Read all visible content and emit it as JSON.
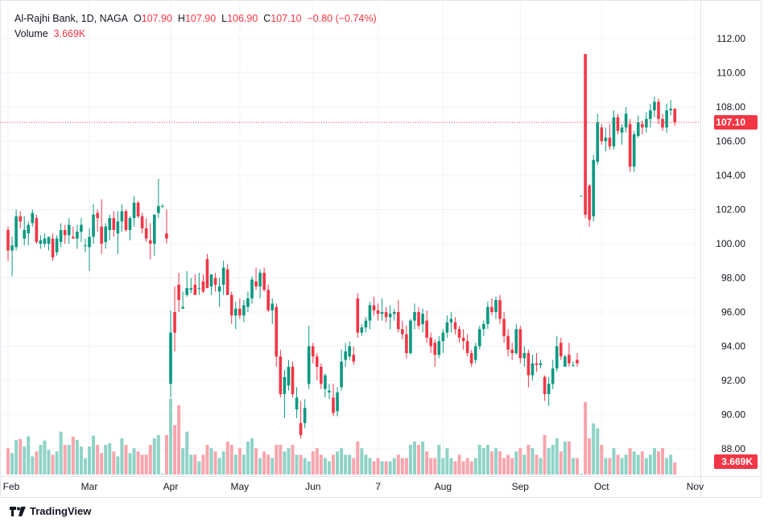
{
  "legend": {
    "symbol": "Al-Rajhi Bank, 1D, NAGA",
    "o_label": "O",
    "o": "107.90",
    "h_label": "H",
    "h": "107.90",
    "l_label": "L",
    "l": "106.90",
    "c_label": "C",
    "c": "107.10",
    "change": "−0.80 (−0.74%)",
    "volume_label": "Volume",
    "volume": "3.669K"
  },
  "brand": "TradingView",
  "colors": {
    "up": "#089981",
    "down": "#f23645",
    "up_volume": "#8fd3c8",
    "down_volume": "#f8a5ad",
    "grid": "#f0f3fa"
  },
  "chart_data": {
    "type": "candlestick",
    "title": "Al-Rajhi Bank, 1D, NAGA",
    "ylim": [
      87,
      113
    ],
    "y_ticks": [
      "88.00",
      "90.00",
      "92.00",
      "94.00",
      "96.00",
      "98.00",
      "100.00",
      "102.00",
      "104.00",
      "106.00",
      "108.00",
      "110.00",
      "112.00"
    ],
    "x_tick_labels": [
      {
        "label": "Feb",
        "index": 0
      },
      {
        "label": "Mar",
        "index": 20
      },
      {
        "label": "Apr",
        "index": 40
      },
      {
        "label": "May",
        "index": 57
      },
      {
        "label": "Jun",
        "index": 75
      },
      {
        "label": "7",
        "index": 91
      },
      {
        "label": "Aug",
        "index": 107
      },
      {
        "label": "Sep",
        "index": 126
      },
      {
        "label": "Oct",
        "index": 146
      },
      {
        "label": "Nov",
        "index": 169
      }
    ],
    "grid": true,
    "last_price_label": "107.10",
    "last_volume_label": "3.669K",
    "volume_unit": "K",
    "candles_ohlcv": [
      [
        100.8,
        101.0,
        99.0,
        99.6,
        8.0
      ],
      [
        99.6,
        100.4,
        98.1,
        99.9,
        6.5
      ],
      [
        99.8,
        102.0,
        99.6,
        101.6,
        10.5
      ],
      [
        101.6,
        101.9,
        100.9,
        101.3,
        10.8
      ],
      [
        100.3,
        101.6,
        99.9,
        100.8,
        8.5
      ],
      [
        100.6,
        101.3,
        99.9,
        101.1,
        11.6
      ],
      [
        101.2,
        102.0,
        101.0,
        101.8,
        5.5
      ],
      [
        101.5,
        101.7,
        100.0,
        100.1,
        7.0
      ],
      [
        100.0,
        100.5,
        99.7,
        100.2,
        9.0
      ],
      [
        100.0,
        100.6,
        99.8,
        100.3,
        10.3
      ],
      [
        100.0,
        100.4,
        99.6,
        100.4,
        7.5
      ],
      [
        100.3,
        100.6,
        99.0,
        99.2,
        6.0
      ],
      [
        99.5,
        100.5,
        99.3,
        100.3,
        7.0
      ],
      [
        100.1,
        101.2,
        99.8,
        100.8,
        13.0
      ],
      [
        100.8,
        101.1,
        100.0,
        100.5,
        9.0
      ],
      [
        100.5,
        101.5,
        100.0,
        101.1,
        9.0
      ],
      [
        100.4,
        101.0,
        100.3,
        100.3,
        11.5
      ],
      [
        100.3,
        101.1,
        99.7,
        100.7,
        10.5
      ],
      [
        100.7,
        101.5,
        100.1,
        101.1,
        8.5
      ],
      [
        99.9,
        100.3,
        99.5,
        99.9,
        5.0
      ],
      [
        99.8,
        100.9,
        98.4,
        100.4,
        8.5
      ],
      [
        100.4,
        102.3,
        100.0,
        101.7,
        11.8
      ],
      [
        101.8,
        102.0,
        100.7,
        101.5,
        9.0
      ],
      [
        101.0,
        102.6,
        99.4,
        100.0,
        6.5
      ],
      [
        100.1,
        101.2,
        99.7,
        101.0,
        9.0
      ],
      [
        100.8,
        101.7,
        100.2,
        101.5,
        9.5
      ],
      [
        101.5,
        101.9,
        100.4,
        100.8,
        7.0
      ],
      [
        100.6,
        101.9,
        99.4,
        101.3,
        5.5
      ],
      [
        101.3,
        102.3,
        100.7,
        101.9,
        11.0
      ],
      [
        101.9,
        102.0,
        100.7,
        100.8,
        9.0
      ],
      [
        100.8,
        101.6,
        100.2,
        101.5,
        6.5
      ],
      [
        101.5,
        102.8,
        101.0,
        102.4,
        8.0
      ],
      [
        102.4,
        102.5,
        101.5,
        101.6,
        7.0
      ],
      [
        101.6,
        101.8,
        100.6,
        100.9,
        6.0
      ],
      [
        100.9,
        101.5,
        100.1,
        100.3,
        6.0
      ],
      [
        100.2,
        101.2,
        99.1,
        100.0,
        9.0
      ],
      [
        100.0,
        101.7,
        99.3,
        101.7,
        11.0
      ],
      [
        101.8,
        103.8,
        101.5,
        102.2,
        12.0
      ],
      [
        102.2,
        102.3,
        102.1,
        102.2,
        0.3
      ],
      [
        100.6,
        102.0,
        100.0,
        100.3,
        12.0
      ],
      [
        91.8,
        96.1,
        91.0,
        94.8,
        23.0
      ],
      [
        96.0,
        97.5,
        93.7,
        94.8,
        15.0
      ],
      [
        97.6,
        98.3,
        96.0,
        96.7,
        21.0
      ],
      [
        96.2,
        97.2,
        96.2,
        96.3,
        8.0
      ],
      [
        97.0,
        98.4,
        96.9,
        97.4,
        13.0
      ],
      [
        97.3,
        98.0,
        97.1,
        97.4,
        6.0
      ],
      [
        97.6,
        98.2,
        97.0,
        97.0,
        6.0
      ],
      [
        97.4,
        98.3,
        97.0,
        97.4,
        4.0
      ],
      [
        97.8,
        98.2,
        97.1,
        97.2,
        6.0
      ],
      [
        99.1,
        99.4,
        97.4,
        97.4,
        9.0
      ],
      [
        97.5,
        98.2,
        97.0,
        98.2,
        8.0
      ],
      [
        98.0,
        98.3,
        97.2,
        97.6,
        7.0
      ],
      [
        97.2,
        98.0,
        96.3,
        97.5,
        5.0
      ],
      [
        97.6,
        99.0,
        97.0,
        98.6,
        7.0
      ],
      [
        98.5,
        98.8,
        97.0,
        97.0,
        10.0
      ],
      [
        97.0,
        97.2,
        95.3,
        95.8,
        9.0
      ],
      [
        95.8,
        96.6,
        95.0,
        96.2,
        6.0
      ],
      [
        96.2,
        96.8,
        95.6,
        95.8,
        8.0
      ],
      [
        95.8,
        96.7,
        95.4,
        96.4,
        6.0
      ],
      [
        96.3,
        97.2,
        96.0,
        96.8,
        10.0
      ],
      [
        96.8,
        98.1,
        96.5,
        97.9,
        11.0
      ],
      [
        97.8,
        98.6,
        97.3,
        97.5,
        8.0
      ],
      [
        97.5,
        98.5,
        96.8,
        98.3,
        5.0
      ],
      [
        98.3,
        98.6,
        97.2,
        97.3,
        7.0
      ],
      [
        97.3,
        97.6,
        96.0,
        96.1,
        6.0
      ],
      [
        96.1,
        96.8,
        95.3,
        96.5,
        5.0
      ],
      [
        96.3,
        96.5,
        92.8,
        93.4,
        9.0
      ],
      [
        93.4,
        93.8,
        91.0,
        91.2,
        9.0
      ],
      [
        91.2,
        92.6,
        89.8,
        92.2,
        7.0
      ],
      [
        91.7,
        93.2,
        91.4,
        92.8,
        8.0
      ],
      [
        92.8,
        93.1,
        91.0,
        91.2,
        9.0
      ],
      [
        90.3,
        91.6,
        89.8,
        91.0,
        6.0
      ],
      [
        89.5,
        90.8,
        88.6,
        88.8,
        6.0
      ],
      [
        89.5,
        90.9,
        89.2,
        90.4,
        5.0
      ],
      [
        91.8,
        95.2,
        91.5,
        94.0,
        4.0
      ],
      [
        94.0,
        94.2,
        93.0,
        93.4,
        7.0
      ],
      [
        93.4,
        93.6,
        92.0,
        92.8,
        8.0
      ],
      [
        92.8,
        93.0,
        91.5,
        91.8,
        6.0
      ],
      [
        91.5,
        92.4,
        91.0,
        92.3,
        5.0
      ],
      [
        91.3,
        91.8,
        90.9,
        91.4,
        4.0
      ],
      [
        91.0,
        91.8,
        89.9,
        90.1,
        6.0
      ],
      [
        90.2,
        91.6,
        89.9,
        91.3,
        7.0
      ],
      [
        91.6,
        93.8,
        91.4,
        93.1,
        8.0
      ],
      [
        93.2,
        94.2,
        92.8,
        93.7,
        6.0
      ],
      [
        93.4,
        94.3,
        93.2,
        94.0,
        6.0
      ],
      [
        93.5,
        94.0,
        92.9,
        93.1,
        5.0
      ],
      [
        96.8,
        97.1,
        94.5,
        94.8,
        10.0
      ],
      [
        94.8,
        95.3,
        94.6,
        95.1,
        8.0
      ],
      [
        95.1,
        95.7,
        94.8,
        95.5,
        6.0
      ],
      [
        95.5,
        96.6,
        95.0,
        96.4,
        5.0
      ],
      [
        96.4,
        96.9,
        95.8,
        96.1,
        4.0
      ],
      [
        96.1,
        96.5,
        95.5,
        95.9,
        5.0
      ],
      [
        95.9,
        96.8,
        95.5,
        96.0,
        4.0
      ],
      [
        96.0,
        96.3,
        95.4,
        95.7,
        4.0
      ],
      [
        95.7,
        96.4,
        95.0,
        95.9,
        4.0
      ],
      [
        95.9,
        96.2,
        95.5,
        96.0,
        5.0
      ],
      [
        96.0,
        96.7,
        94.8,
        95.0,
        6.0
      ],
      [
        95.0,
        95.5,
        94.4,
        94.7,
        5.0
      ],
      [
        94.7,
        95.2,
        93.3,
        93.6,
        5.0
      ],
      [
        93.6,
        95.6,
        93.5,
        95.5,
        9.0
      ],
      [
        95.5,
        96.5,
        95.0,
        96.0,
        10.0
      ],
      [
        96.0,
        96.3,
        95.0,
        95.2,
        9.0
      ],
      [
        95.3,
        96.2,
        94.8,
        95.9,
        10.0
      ],
      [
        95.5,
        96.1,
        94.2,
        94.5,
        7.0
      ],
      [
        94.5,
        94.8,
        93.6,
        94.0,
        5.0
      ],
      [
        94.2,
        94.4,
        92.8,
        93.5,
        5.0
      ],
      [
        93.5,
        94.6,
        93.3,
        94.3,
        9.0
      ],
      [
        94.3,
        95.0,
        93.6,
        94.8,
        5.0
      ],
      [
        94.8,
        95.8,
        94.5,
        95.4,
        8.0
      ],
      [
        95.4,
        96.0,
        94.8,
        95.6,
        5.0
      ],
      [
        95.4,
        95.7,
        94.7,
        95.0,
        4.0
      ],
      [
        95.0,
        95.2,
        94.2,
        94.5,
        6.0
      ],
      [
        94.5,
        95.0,
        93.8,
        94.3,
        4.0
      ],
      [
        94.3,
        94.7,
        93.4,
        93.6,
        5.0
      ],
      [
        93.6,
        93.8,
        92.8,
        93.0,
        4.0
      ],
      [
        93.2,
        94.2,
        93.0,
        94.0,
        5.0
      ],
      [
        94.0,
        95.2,
        93.8,
        95.0,
        9.0
      ],
      [
        95.0,
        95.5,
        94.6,
        95.3,
        8.0
      ],
      [
        95.3,
        96.6,
        95.0,
        96.3,
        9.0
      ],
      [
        96.3,
        96.8,
        95.8,
        96.0,
        7.0
      ],
      [
        96.0,
        96.9,
        95.6,
        96.7,
        8.0
      ],
      [
        96.7,
        97.0,
        95.3,
        95.6,
        7.0
      ],
      [
        95.6,
        96.0,
        94.2,
        94.6,
        5.0
      ],
      [
        94.6,
        95.0,
        93.4,
        93.8,
        6.0
      ],
      [
        93.8,
        94.2,
        93.2,
        93.6,
        5.0
      ],
      [
        93.6,
        95.3,
        93.5,
        95.0,
        7.0
      ],
      [
        95.0,
        95.2,
        93.0,
        93.3,
        8.0
      ],
      [
        93.3,
        94.0,
        92.8,
        93.6,
        6.0
      ],
      [
        93.6,
        93.8,
        91.6,
        92.3,
        9.0
      ],
      [
        92.3,
        93.5,
        92.0,
        93.0,
        8.0
      ],
      [
        93.0,
        93.6,
        92.5,
        92.9,
        6.0
      ],
      [
        92.9,
        93.2,
        92.7,
        93.0,
        5.0
      ],
      [
        92.2,
        92.3,
        90.8,
        91.2,
        12.0
      ],
      [
        91.2,
        92.2,
        90.5,
        91.8,
        8.0
      ],
      [
        91.8,
        93.2,
        91.5,
        92.7,
        9.0
      ],
      [
        92.7,
        94.6,
        92.5,
        94.0,
        11.0
      ],
      [
        94.2,
        94.5,
        93.2,
        93.4,
        7.0
      ],
      [
        92.8,
        93.5,
        92.8,
        93.4,
        10.0
      ],
      [
        93.5,
        94.2,
        92.8,
        93.0,
        10.0
      ],
      [
        92.9,
        93.1,
        92.8,
        92.9,
        5.0
      ],
      [
        93.2,
        93.6,
        92.8,
        93.0,
        5.0
      ],
      [
        102.8,
        102.8,
        102.8,
        102.8,
        0.3
      ],
      [
        111.1,
        111.1,
        101.5,
        101.7,
        22.0
      ],
      [
        103.4,
        103.5,
        101.0,
        101.4,
        11.0
      ],
      [
        101.6,
        105.2,
        101.3,
        104.9,
        15.5
      ],
      [
        104.8,
        107.6,
        104.6,
        107.1,
        14.0
      ],
      [
        106.8,
        107.0,
        105.8,
        106.0,
        9.0
      ],
      [
        106.0,
        106.8,
        105.4,
        106.2,
        5.0
      ],
      [
        106.2,
        107.0,
        105.5,
        105.7,
        5.0
      ],
      [
        105.7,
        107.8,
        105.5,
        107.4,
        8.0
      ],
      [
        107.4,
        107.6,
        106.4,
        106.6,
        6.0
      ],
      [
        106.5,
        107.0,
        105.8,
        106.8,
        5.0
      ],
      [
        106.8,
        108.0,
        106.5,
        107.6,
        6.0
      ],
      [
        107.0,
        107.3,
        104.2,
        104.5,
        8.0
      ],
      [
        104.5,
        106.6,
        104.2,
        106.4,
        7.0
      ],
      [
        106.3,
        107.5,
        106.2,
        107.1,
        6.0
      ],
      [
        107.0,
        107.2,
        106.4,
        106.8,
        7.0
      ],
      [
        106.8,
        107.7,
        106.5,
        107.3,
        5.0
      ],
      [
        107.3,
        108.2,
        106.8,
        107.8,
        6.0
      ],
      [
        107.8,
        108.6,
        107.4,
        108.3,
        8.0
      ],
      [
        108.3,
        108.5,
        107.0,
        107.3,
        7.0
      ],
      [
        107.3,
        107.6,
        106.6,
        106.8,
        8.0
      ],
      [
        106.8,
        108.2,
        106.5,
        107.8,
        5.0
      ],
      [
        107.8,
        108.4,
        107.5,
        107.9,
        6.0
      ],
      [
        107.9,
        107.9,
        106.9,
        107.1,
        3.669
      ]
    ]
  }
}
